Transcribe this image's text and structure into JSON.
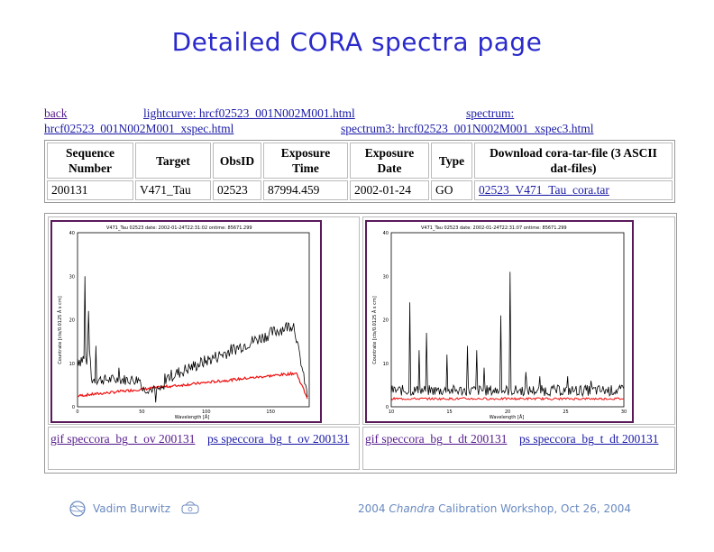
{
  "title": "Detailed CORA spectra page",
  "links": {
    "back": "back",
    "lightcurve": "lightcurve: hrcf02523_001N002M001.html",
    "spectrum_label": "spectrum:",
    "spectrum_file": "hrcf02523_001N002M001_xspec.html",
    "spectrum3": "spectrum3: hrcf02523_001N002M001_xspec3.html"
  },
  "table": {
    "headers": {
      "sequence": "Sequence Number",
      "target": "Target",
      "obsid": "ObsID",
      "exposure_time": "Exposure Time",
      "exposure_date": "Exposure Date",
      "type": "Type",
      "download": "Download cora-tar-file (3 ASCII dat-files)"
    },
    "row": {
      "sequence": "200131",
      "target": "V471_Tau",
      "obsid": "02523",
      "exposure_time": "87994.459",
      "exposure_date": "2002-01-24",
      "type": "GO",
      "download": "02523_V471_Tau_cora.tar"
    }
  },
  "plots": {
    "left": {
      "header": "V471_Tau 02523 date: 2002-01-24T22:31:02 ontime: 85671.299",
      "ylabel": "Countrate [cts/0.0125 Å s cm]",
      "xlabel": "Wavelength [Å]",
      "xticks": [
        "0",
        "50",
        "100",
        "150"
      ],
      "yticks": [
        "0",
        "10",
        "20",
        "30",
        "40"
      ],
      "gif_link": "gif speccora_bg_t_ov 200131",
      "ps_link": "ps speccora_bg_t_ov 200131"
    },
    "right": {
      "header": "V471_Tau 02523 date: 2002-01-24T22:31:07 ontime: 85671.299",
      "ylabel": "Countrate [cts/0.0125 Å s cm]",
      "xlabel": "Wavelength [Å]",
      "xticks": [
        "10",
        "15",
        "20",
        "25",
        "30"
      ],
      "yticks": [
        "0",
        "10",
        "20",
        "30",
        "40"
      ],
      "gif_link": "gif speccora_bg_t_dt 200131",
      "ps_link": "ps speccora_bg_t_dt 200131"
    }
  },
  "footer": {
    "author": "Vadim Burwitz",
    "event_prefix": "2004",
    "event_italic": "Chandra",
    "event_suffix": "Calibration Workshop, Oct 26, 2004"
  },
  "colors": {
    "title": "#2a2acc",
    "link": "#1a1aa6",
    "visited": "#551a8b",
    "spectrum": "#000000",
    "background": "#ee1111"
  }
}
